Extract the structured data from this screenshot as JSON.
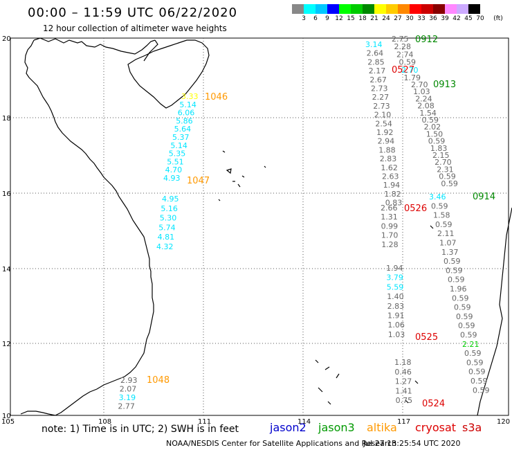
{
  "header": {
    "title": "00:00 – 11:59 UTC 06/22/2020",
    "subtitle": "12 hour collection of altimeter wave heights"
  },
  "legend": {
    "unit": "(ft)",
    "ticks": [
      "3",
      "6",
      "9",
      "12",
      "15",
      "18",
      "21",
      "24",
      "27",
      "30",
      "33",
      "36",
      "39",
      "42",
      "45",
      "70"
    ],
    "colors": [
      "#888888",
      "#00ffff",
      "#00c8ff",
      "#0000ff",
      "#00ff00",
      "#00cc00",
      "#008800",
      "#ffff00",
      "#ffcc00",
      "#ff8800",
      "#ff0000",
      "#cc0000",
      "#880000",
      "#ff88ff",
      "#ccaaff",
      "#000000"
    ]
  },
  "map": {
    "lat_labels": [
      "20",
      "18",
      "16",
      "14",
      "12",
      "10"
    ],
    "lon_labels": [
      "105",
      "108",
      "111",
      "114",
      "117",
      "120"
    ]
  },
  "tracks": [
    {
      "id": "1046",
      "color": "#ff9900",
      "values": [
        {
          "v": "3.33",
          "c": "#ffff00"
        },
        {
          "v": "5.14",
          "c": "#00e5ff"
        },
        {
          "v": "6.06",
          "c": "#00e5ff"
        },
        {
          "v": "5.86",
          "c": "#00e5ff"
        },
        {
          "v": "5.64",
          "c": "#00e5ff"
        },
        {
          "v": "5.37",
          "c": "#00e5ff"
        },
        {
          "v": "5.14",
          "c": "#00e5ff"
        },
        {
          "v": "5.35",
          "c": "#00e5ff"
        },
        {
          "v": "5.51",
          "c": "#00e5ff"
        },
        {
          "v": "4.70",
          "c": "#00e5ff"
        },
        {
          "v": "4.93",
          "c": "#00e5ff"
        }
      ]
    },
    {
      "id": "1047",
      "color": "#ff9900",
      "values": [
        {
          "v": "4.95",
          "c": "#00e5ff"
        },
        {
          "v": "5.16",
          "c": "#00e5ff"
        },
        {
          "v": "5.30",
          "c": "#00e5ff"
        },
        {
          "v": "5.74",
          "c": "#00e5ff"
        },
        {
          "v": "4.81",
          "c": "#00e5ff"
        },
        {
          "v": "4.32",
          "c": "#00e5ff"
        }
      ]
    },
    {
      "id": "1048",
      "color": "#ff9900",
      "values": [
        {
          "v": "2.93",
          "c": "#666666"
        },
        {
          "v": "2.07",
          "c": "#666666"
        },
        {
          "v": "3.19",
          "c": "#00e5ff"
        },
        {
          "v": "2.77",
          "c": "#666666"
        }
      ]
    },
    {
      "id": "0527",
      "color": "#dd0000",
      "values": [
        {
          "v": "3.14",
          "c": "#00e5ff"
        },
        {
          "v": "2.64",
          "c": "#666666"
        },
        {
          "v": "2.85",
          "c": "#666666"
        },
        {
          "v": "2.17",
          "c": "#666666"
        },
        {
          "v": "2.67",
          "c": "#666666"
        },
        {
          "v": "2.73",
          "c": "#666666"
        },
        {
          "v": "2.27",
          "c": "#666666"
        },
        {
          "v": "2.73",
          "c": "#666666"
        },
        {
          "v": "2.10",
          "c": "#666666"
        },
        {
          "v": "2.54",
          "c": "#666666"
        },
        {
          "v": "1.92",
          "c": "#666666"
        },
        {
          "v": "2.94",
          "c": "#666666"
        },
        {
          "v": "1.88",
          "c": "#666666"
        },
        {
          "v": "2.83",
          "c": "#666666"
        },
        {
          "v": "1.62",
          "c": "#666666"
        },
        {
          "v": "2.63",
          "c": "#666666"
        },
        {
          "v": "1.94",
          "c": "#666666"
        },
        {
          "v": "1.82",
          "c": "#666666"
        },
        {
          "v": "0.83",
          "c": "#666666"
        }
      ]
    },
    {
      "id": "0526",
      "color": "#dd0000",
      "values": [
        {
          "v": "2.66",
          "c": "#666666"
        },
        {
          "v": "1.31",
          "c": "#666666"
        },
        {
          "v": "0.99",
          "c": "#666666"
        },
        {
          "v": "1.70",
          "c": "#666666"
        },
        {
          "v": "1.28",
          "c": "#666666"
        }
      ]
    },
    {
      "id": "0525",
      "color": "#dd0000",
      "values": [
        {
          "v": "1.94",
          "c": "#666666"
        },
        {
          "v": "3.79",
          "c": "#00e5ff"
        },
        {
          "v": "5.59",
          "c": "#00e5ff"
        },
        {
          "v": "1.40",
          "c": "#666666"
        },
        {
          "v": "2.83",
          "c": "#666666"
        },
        {
          "v": "1.91",
          "c": "#666666"
        },
        {
          "v": "1.06",
          "c": "#666666"
        },
        {
          "v": "1.03",
          "c": "#666666"
        }
      ]
    },
    {
      "id": "0524",
      "color": "#dd0000",
      "values": [
        {
          "v": "1.18",
          "c": "#666666"
        },
        {
          "v": "0.46",
          "c": "#666666"
        },
        {
          "v": "1.27",
          "c": "#666666"
        },
        {
          "v": "1.41",
          "c": "#666666"
        },
        {
          "v": "0.75",
          "c": "#666666"
        }
      ]
    },
    {
      "id": "0912",
      "color": "#008800",
      "values": [
        {
          "v": "2.75",
          "c": "#666666"
        },
        {
          "v": "2.28",
          "c": "#666666"
        },
        {
          "v": "2.74",
          "c": "#666666"
        },
        {
          "v": "0.59",
          "c": "#666666"
        },
        {
          "v": "2.70",
          "c": "#00e5ff"
        },
        {
          "v": "1.79",
          "c": "#666666"
        }
      ]
    },
    {
      "id": "0913",
      "color": "#008800",
      "values": [
        {
          "v": "2.70",
          "c": "#666666"
        },
        {
          "v": "1.03",
          "c": "#666666"
        },
        {
          "v": "2.24",
          "c": "#666666"
        },
        {
          "v": "2.08",
          "c": "#666666"
        },
        {
          "v": "1.54",
          "c": "#666666"
        },
        {
          "v": "0.59",
          "c": "#666666"
        },
        {
          "v": "2.02",
          "c": "#666666"
        },
        {
          "v": "1.50",
          "c": "#666666"
        },
        {
          "v": "0.59",
          "c": "#666666"
        },
        {
          "v": "1.83",
          "c": "#666666"
        },
        {
          "v": "2.15",
          "c": "#666666"
        },
        {
          "v": "2.70",
          "c": "#666666"
        },
        {
          "v": "2.31",
          "c": "#666666"
        },
        {
          "v": "0.59",
          "c": "#666666"
        },
        {
          "v": "0.59",
          "c": "#666666"
        }
      ]
    },
    {
      "id": "0914",
      "color": "#008800",
      "values": [
        {
          "v": "3.46",
          "c": "#00e5ff"
        },
        {
          "v": "0.59",
          "c": "#666666"
        },
        {
          "v": "1.58",
          "c": "#666666"
        },
        {
          "v": "0.59",
          "c": "#666666"
        },
        {
          "v": "2.11",
          "c": "#666666"
        },
        {
          "v": "1.07",
          "c": "#666666"
        },
        {
          "v": "1.37",
          "c": "#666666"
        },
        {
          "v": "0.59",
          "c": "#666666"
        },
        {
          "v": "0.59",
          "c": "#666666"
        },
        {
          "v": "0.59",
          "c": "#666666"
        },
        {
          "v": "1.96",
          "c": "#666666"
        },
        {
          "v": "0.59",
          "c": "#666666"
        },
        {
          "v": "0.59",
          "c": "#666666"
        },
        {
          "v": "0.59",
          "c": "#666666"
        },
        {
          "v": "0.59",
          "c": "#666666"
        },
        {
          "v": "0.59",
          "c": "#666666"
        },
        {
          "v": "2.21",
          "c": "#00cc00"
        },
        {
          "v": "0.59",
          "c": "#666666"
        },
        {
          "v": "0.59",
          "c": "#666666"
        },
        {
          "v": "0.59",
          "c": "#666666"
        },
        {
          "v": "0.59",
          "c": "#666666"
        },
        {
          "v": "0.59",
          "c": "#666666"
        }
      ]
    }
  ],
  "footer": {
    "note": "note:  1) Time is in UTC;  2) SWH is in feet",
    "satellites": [
      {
        "name": "jason2",
        "color": "#0000cc"
      },
      {
        "name": "jason3",
        "color": "#009900"
      },
      {
        "name": "altika",
        "color": "#ff9900"
      },
      {
        "name": "cryosat",
        "color": "#dd0000"
      },
      {
        "name": "s3a",
        "color": "#cc0000"
      }
    ],
    "credit": "NOAA/NESDIS Center for Satellite Applications and Research",
    "timestamp": "Jul 27 13:25:54 UTC 2020"
  }
}
